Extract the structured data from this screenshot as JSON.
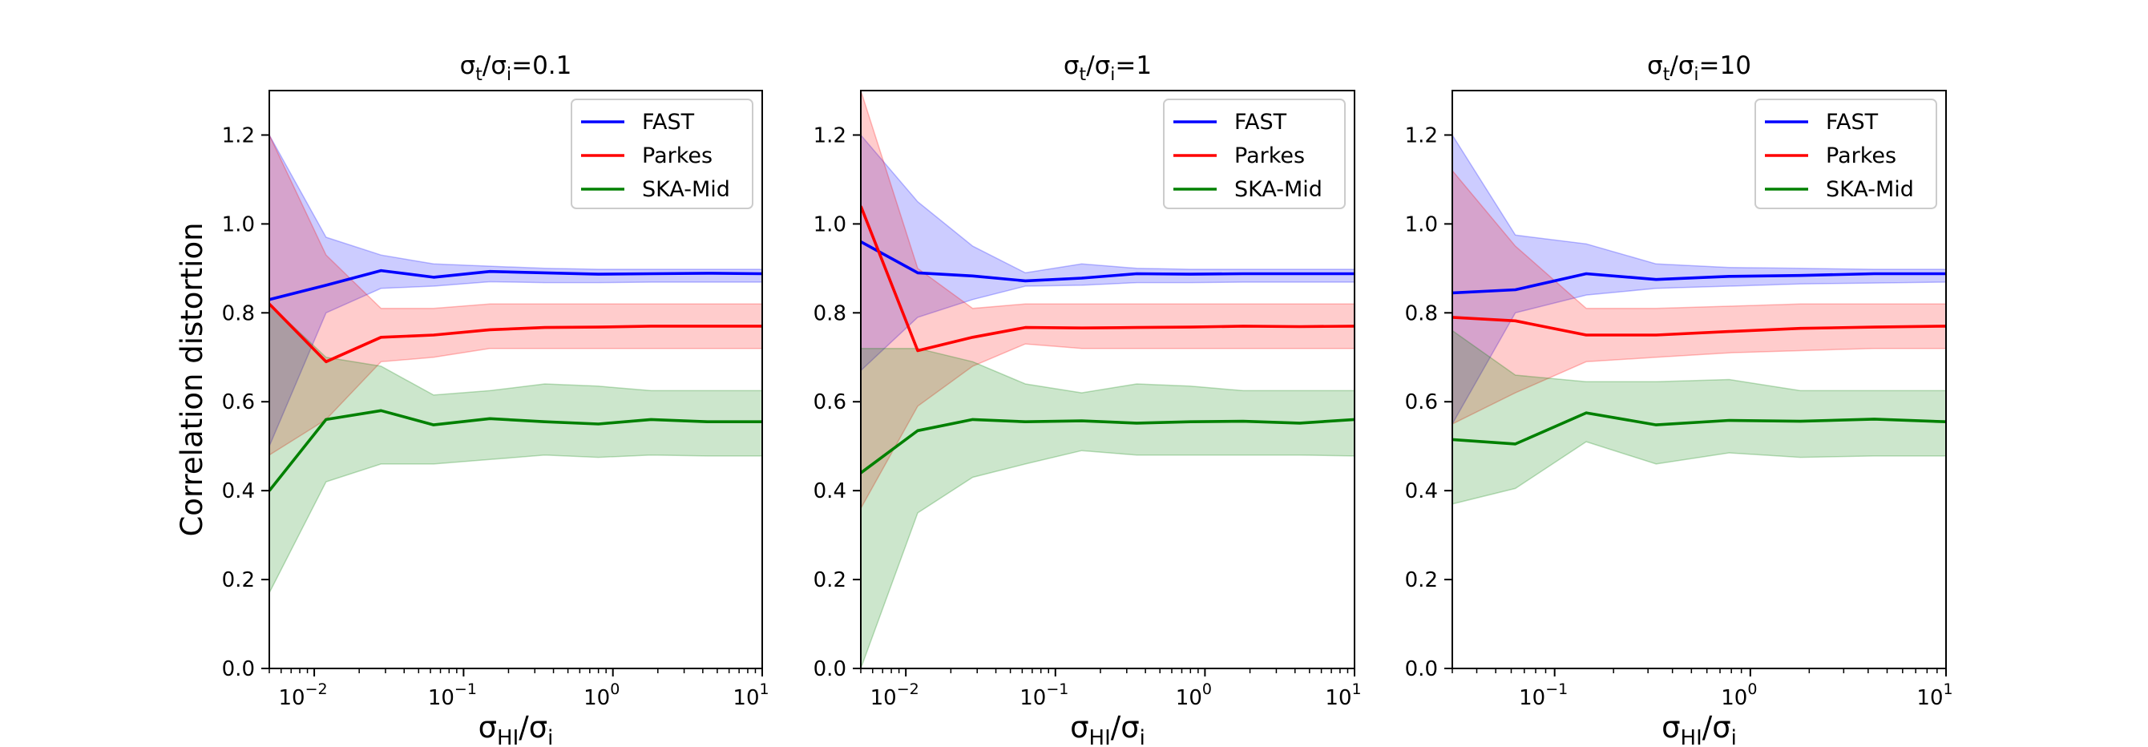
{
  "chart_data": [
    {
      "type": "line",
      "title_base": "σ",
      "title_sub1": "t",
      "title_slash": "/σ",
      "title_sub2": "i",
      "title_suffix": "=0.1",
      "xscale": "log",
      "xlim": [
        0.005,
        10
      ],
      "ylim": [
        0,
        1.3
      ],
      "ylabel": "Correlation distortion",
      "xlabel_base": "σ",
      "xlabel_sub1": "HI",
      "xlabel_slash": "/σ",
      "xlabel_sub2": "i",
      "x": [
        0.005,
        0.012,
        0.028,
        0.063,
        0.15,
        0.35,
        0.8,
        1.8,
        4.3,
        10
      ],
      "series": [
        {
          "name": "FAST",
          "color": "#0000ff",
          "values": [
            0.83,
            0.862,
            0.895,
            0.88,
            0.893,
            0.89,
            0.887,
            0.888,
            0.889,
            0.888
          ],
          "lower": [
            0.5,
            0.8,
            0.855,
            0.86,
            0.87,
            0.868,
            0.868,
            0.869,
            0.869,
            0.869
          ],
          "upper": [
            1.2,
            0.97,
            0.93,
            0.91,
            0.905,
            0.9,
            0.898,
            0.898,
            0.898,
            0.898
          ]
        },
        {
          "name": "Parkes",
          "color": "#ff0000",
          "values": [
            0.82,
            0.69,
            0.745,
            0.75,
            0.762,
            0.767,
            0.768,
            0.77,
            0.77,
            0.77
          ],
          "lower": [
            0.48,
            0.56,
            0.69,
            0.7,
            0.72,
            0.72,
            0.72,
            0.72,
            0.72,
            0.72
          ],
          "upper": [
            1.2,
            0.93,
            0.81,
            0.81,
            0.82,
            0.82,
            0.82,
            0.82,
            0.82,
            0.82
          ]
        },
        {
          "name": "SKA-Mid",
          "color": "#008000",
          "values": [
            0.4,
            0.56,
            0.58,
            0.548,
            0.562,
            0.555,
            0.55,
            0.56,
            0.555,
            0.555
          ],
          "lower": [
            0.17,
            0.42,
            0.46,
            0.46,
            0.47,
            0.48,
            0.475,
            0.48,
            0.478,
            0.478
          ],
          "upper": [
            0.82,
            0.7,
            0.68,
            0.615,
            0.625,
            0.64,
            0.635,
            0.625,
            0.625,
            0.625
          ]
        }
      ],
      "xticks": [
        0.01,
        0.1,
        1,
        10
      ],
      "xtick_labels": [
        [
          "10",
          "−2"
        ],
        [
          "10",
          "−1"
        ],
        [
          "10",
          "0"
        ],
        [
          "10",
          "1"
        ]
      ],
      "yticks": [
        0.0,
        0.2,
        0.4,
        0.6,
        0.8,
        1.0,
        1.2
      ],
      "ytick_labels": [
        "0.0",
        "0.2",
        "0.4",
        "0.6",
        "0.8",
        "1.0",
        "1.2"
      ],
      "legend_position": "upper right",
      "legend": [
        "FAST",
        "Parkes",
        "SKA-Mid"
      ]
    },
    {
      "type": "line",
      "title_base": "σ",
      "title_sub1": "t",
      "title_slash": "/σ",
      "title_sub2": "i",
      "title_suffix": "=1",
      "xscale": "log",
      "xlim": [
        0.005,
        10
      ],
      "ylim": [
        0,
        1.3
      ],
      "ylabel": "",
      "xlabel_base": "σ",
      "xlabel_sub1": "HI",
      "xlabel_slash": "/σ",
      "xlabel_sub2": "i",
      "x": [
        0.005,
        0.012,
        0.028,
        0.063,
        0.15,
        0.35,
        0.8,
        1.8,
        4.3,
        10
      ],
      "series": [
        {
          "name": "FAST",
          "color": "#0000ff",
          "values": [
            0.96,
            0.89,
            0.883,
            0.872,
            0.878,
            0.888,
            0.887,
            0.888,
            0.888,
            0.888
          ],
          "lower": [
            0.67,
            0.79,
            0.83,
            0.86,
            0.862,
            0.868,
            0.868,
            0.869,
            0.869,
            0.869
          ],
          "upper": [
            1.2,
            1.05,
            0.95,
            0.89,
            0.91,
            0.9,
            0.898,
            0.898,
            0.898,
            0.898
          ]
        },
        {
          "name": "Parkes",
          "color": "#ff0000",
          "values": [
            1.04,
            0.715,
            0.745,
            0.767,
            0.766,
            0.767,
            0.768,
            0.77,
            0.769,
            0.77
          ],
          "lower": [
            0.36,
            0.59,
            0.68,
            0.73,
            0.72,
            0.72,
            0.72,
            0.72,
            0.72,
            0.72
          ],
          "upper": [
            1.3,
            0.9,
            0.81,
            0.82,
            0.82,
            0.82,
            0.82,
            0.82,
            0.82,
            0.82
          ]
        },
        {
          "name": "SKA-Mid",
          "color": "#008000",
          "values": [
            0.44,
            0.535,
            0.56,
            0.555,
            0.557,
            0.552,
            0.555,
            0.556,
            0.552,
            0.56
          ],
          "lower": [
            0.0,
            0.35,
            0.43,
            0.46,
            0.49,
            0.48,
            0.48,
            0.48,
            0.48,
            0.478
          ],
          "upper": [
            0.72,
            0.72,
            0.69,
            0.64,
            0.62,
            0.64,
            0.635,
            0.625,
            0.625,
            0.625
          ]
        }
      ],
      "xticks": [
        0.01,
        0.1,
        1,
        10
      ],
      "xtick_labels": [
        [
          "10",
          "−2"
        ],
        [
          "10",
          "−1"
        ],
        [
          "10",
          "0"
        ],
        [
          "10",
          "1"
        ]
      ],
      "yticks": [
        0.0,
        0.2,
        0.4,
        0.6,
        0.8,
        1.0,
        1.2
      ],
      "ytick_labels": [
        "0.0",
        "0.2",
        "0.4",
        "0.6",
        "0.8",
        "1.0",
        "1.2"
      ],
      "legend_position": "upper right",
      "legend": [
        "FAST",
        "Parkes",
        "SKA-Mid"
      ]
    },
    {
      "type": "line",
      "title_base": "σ",
      "title_sub1": "t",
      "title_slash": "/σ",
      "title_sub2": "i",
      "title_suffix": "=10",
      "xscale": "log",
      "xlim": [
        0.03,
        10
      ],
      "ylim": [
        0,
        1.3
      ],
      "ylabel": "",
      "xlabel_base": "σ",
      "xlabel_sub1": "HI",
      "xlabel_slash": "/σ",
      "xlabel_sub2": "i",
      "x": [
        0.03,
        0.063,
        0.145,
        0.33,
        0.78,
        1.8,
        4.3,
        10
      ],
      "series": [
        {
          "name": "FAST",
          "color": "#0000ff",
          "values": [
            0.845,
            0.852,
            0.888,
            0.875,
            0.882,
            0.884,
            0.888,
            0.888
          ],
          "lower": [
            0.55,
            0.8,
            0.84,
            0.855,
            0.86,
            0.865,
            0.867,
            0.869
          ],
          "upper": [
            1.2,
            0.975,
            0.955,
            0.91,
            0.902,
            0.9,
            0.898,
            0.898
          ]
        },
        {
          "name": "Parkes",
          "color": "#ff0000",
          "values": [
            0.79,
            0.782,
            0.75,
            0.75,
            0.758,
            0.765,
            0.768,
            0.77
          ],
          "lower": [
            0.55,
            0.62,
            0.69,
            0.7,
            0.71,
            0.715,
            0.72,
            0.72
          ],
          "upper": [
            1.12,
            0.95,
            0.81,
            0.81,
            0.815,
            0.82,
            0.82,
            0.82
          ]
        },
        {
          "name": "SKA-Mid",
          "color": "#008000",
          "values": [
            0.515,
            0.505,
            0.575,
            0.548,
            0.558,
            0.556,
            0.561,
            0.555
          ],
          "lower": [
            0.37,
            0.405,
            0.51,
            0.46,
            0.485,
            0.475,
            0.478,
            0.478
          ],
          "upper": [
            0.76,
            0.66,
            0.645,
            0.645,
            0.65,
            0.625,
            0.625,
            0.625
          ]
        }
      ],
      "xticks": [
        0.1,
        1,
        10
      ],
      "xtick_labels": [
        [
          "10",
          "−1"
        ],
        [
          "10",
          "0"
        ],
        [
          "10",
          "1"
        ]
      ],
      "yticks": [
        0.0,
        0.2,
        0.4,
        0.6,
        0.8,
        1.0,
        1.2
      ],
      "ytick_labels": [
        "0.0",
        "0.2",
        "0.4",
        "0.6",
        "0.8",
        "1.0",
        "1.2"
      ],
      "legend_position": "upper right",
      "legend": [
        "FAST",
        "Parkes",
        "SKA-Mid"
      ]
    }
  ]
}
